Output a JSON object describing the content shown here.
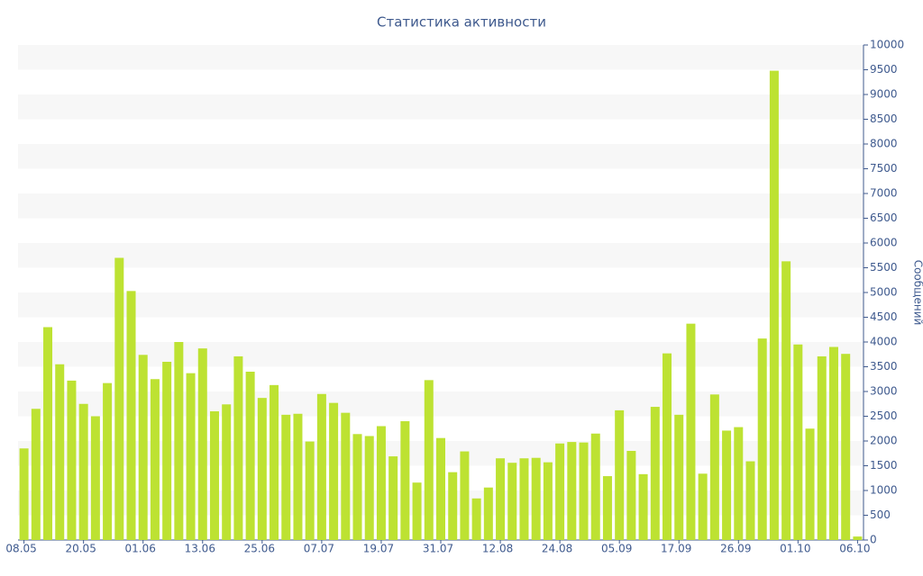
{
  "chart_data": {
    "type": "bar",
    "title": "Статистика активности",
    "y_label": "Сообщений",
    "categories": [
      "08.05",
      null,
      null,
      null,
      null,
      "20.05",
      null,
      null,
      null,
      null,
      "01.06",
      null,
      null,
      null,
      null,
      "13.06",
      null,
      null,
      null,
      null,
      "25.06",
      null,
      null,
      null,
      null,
      "07.07",
      null,
      null,
      null,
      null,
      "19.07",
      null,
      null,
      null,
      null,
      "31.07",
      null,
      null,
      null,
      null,
      "12.08",
      null,
      null,
      null,
      null,
      "24.08",
      null,
      null,
      null,
      null,
      "05.09",
      null,
      null,
      null,
      null,
      "17.09",
      null,
      null,
      null,
      null,
      "26.09",
      null,
      null,
      null,
      null,
      "01.10",
      null,
      null,
      null,
      null,
      "06.10"
    ],
    "values": [
      1850,
      2650,
      4300,
      3550,
      3220,
      2750,
      2500,
      3170,
      5700,
      5030,
      3740,
      3250,
      3600,
      4000,
      3370,
      3870,
      2600,
      2740,
      3710,
      3400,
      2870,
      3130,
      2530,
      2550,
      1990,
      2950,
      2770,
      2570,
      2140,
      2100,
      2300,
      1690,
      2400,
      1160,
      3230,
      2060,
      1370,
      1790,
      840,
      1060,
      1650,
      1560,
      1650,
      1660,
      1570,
      1950,
      1980,
      1970,
      2150,
      1290,
      2620,
      1800,
      1330,
      2690,
      3770,
      2530,
      4370,
      1340,
      2940,
      2210,
      2280,
      1590,
      4070,
      9480,
      5630,
      3950,
      2250,
      3710,
      3900,
      3760,
      70
    ],
    "color": "#bde232",
    "ylim": [
      0,
      10000
    ],
    "yticks": [
      0,
      500,
      1000,
      1500,
      2000,
      2500,
      3000,
      3500,
      4000,
      4500,
      5000,
      5500,
      6000,
      6500,
      7000,
      7500,
      8000,
      8500,
      9000,
      9500,
      10000
    ],
    "grid": true
  }
}
